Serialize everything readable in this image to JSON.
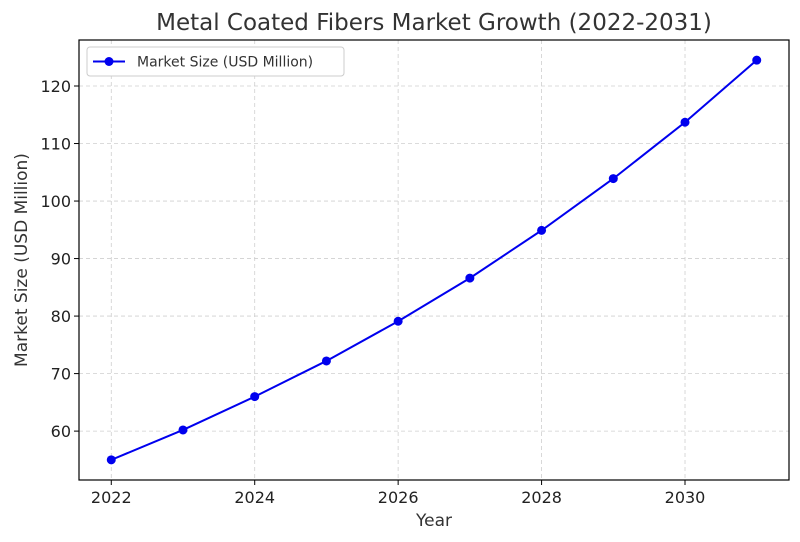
{
  "chart_data": {
    "type": "line",
    "title": "Metal Coated Fibers Market Growth (2022-2031)",
    "xlabel": "Year",
    "ylabel": "Market Size (USD Million)",
    "x": [
      2022,
      2023,
      2024,
      2025,
      2026,
      2027,
      2028,
      2029,
      2030,
      2031
    ],
    "series": [
      {
        "name": "Market Size (USD Million)",
        "color": "#0000ee",
        "marker": "circle",
        "values": [
          55.0,
          60.2,
          66.0,
          72.2,
          79.1,
          86.6,
          94.9,
          103.9,
          113.7,
          124.5
        ]
      }
    ],
    "xlim": [
      2021.55,
      2031.45
    ],
    "ylim": [
      51.5,
      128
    ],
    "xticks": [
      2022,
      2024,
      2026,
      2028,
      2030
    ],
    "yticks": [
      60,
      70,
      80,
      90,
      100,
      110,
      120
    ],
    "grid": true,
    "legend": "top-left"
  }
}
